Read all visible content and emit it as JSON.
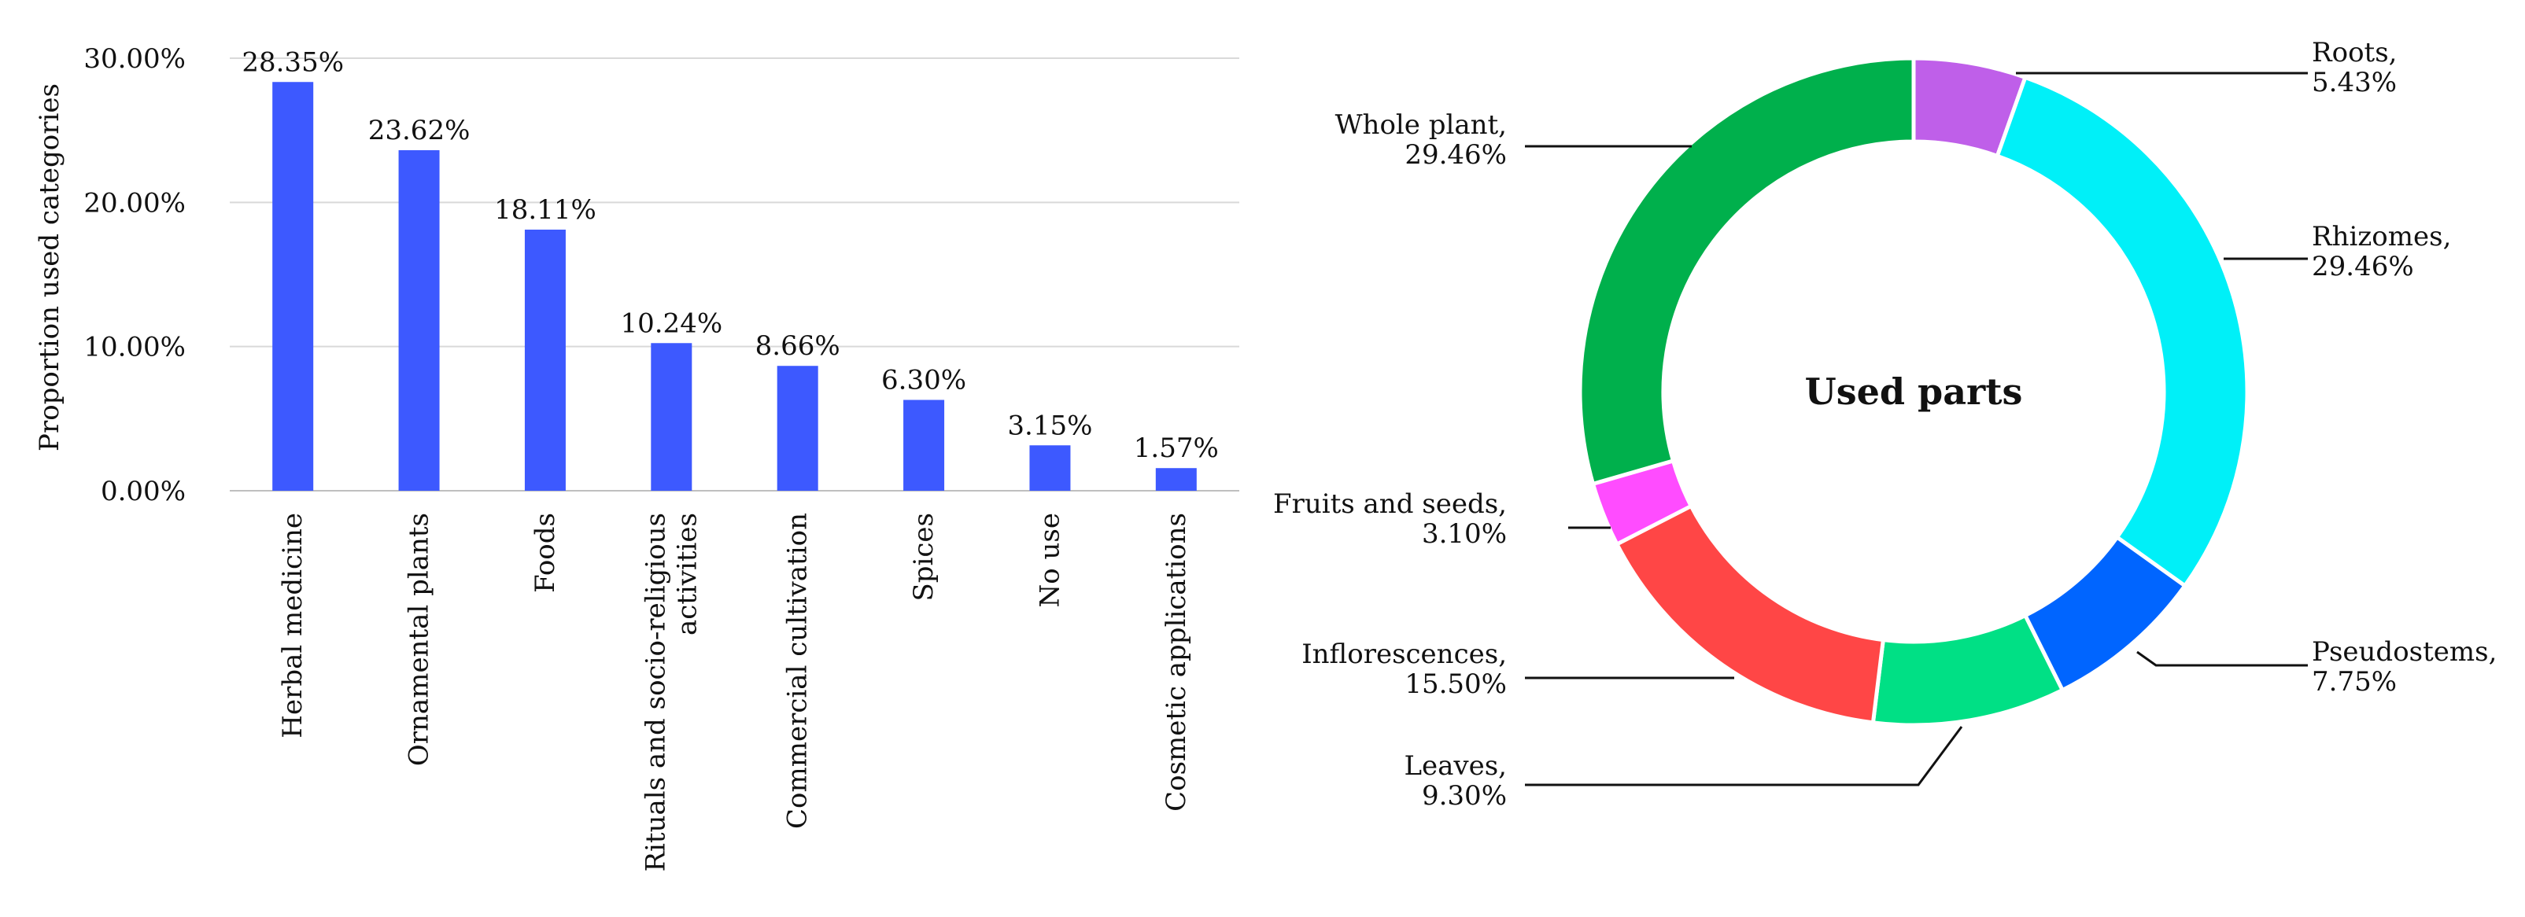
{
  "chart_data": [
    {
      "type": "bar",
      "title": "",
      "xlabel": "",
      "ylabel": "Proportion  used categories",
      "ylim": [
        0,
        30
      ],
      "yticks": [
        "0.00%",
        "10.00%",
        "20.00%",
        "30.00%"
      ],
      "grid": true,
      "bar_color": "#3d59ff",
      "categories": [
        [
          "Herbal medicine"
        ],
        [
          "Ornamental plants"
        ],
        [
          "Foods"
        ],
        [
          "Rituals and socio-religious",
          "activities"
        ],
        [
          "Commercial cultivation"
        ],
        [
          "Spices"
        ],
        [
          "No use"
        ],
        [
          "Cosmetic applications"
        ]
      ],
      "values": [
        28.35,
        23.62,
        18.11,
        10.24,
        8.66,
        6.3,
        3.15,
        1.57
      ],
      "data_labels": [
        "28.35%",
        "23.62%",
        "18.11%",
        "10.24%",
        "8.66%",
        "6.30%",
        "3.15%",
        "1.57%"
      ]
    },
    {
      "type": "pie",
      "title": "Used parts",
      "slices": [
        {
          "label": "Roots,",
          "value_label": "5.43%",
          "value": 5.43,
          "color": "#bf5fe9"
        },
        {
          "label": "Rhizomes,",
          "value_label": "29.46%",
          "value": 29.46,
          "color": "#00f0f8"
        },
        {
          "label": "Pseudostems,",
          "value_label": "7.75%",
          "value": 7.75,
          "color": "#0065ff"
        },
        {
          "label": "Leaves,",
          "value_label": "9.30%",
          "value": 9.3,
          "color": "#00e085"
        },
        {
          "label": "Inflorescences,",
          "value_label": "15.50%",
          "value": 15.5,
          "color": "#ff4646"
        },
        {
          "label": "Fruits and seeds,",
          "value_label": "3.10%",
          "value": 3.1,
          "color": "#ff4cff"
        },
        {
          "label": "Whole plant,",
          "value_label": "29.46%",
          "value": 29.46,
          "color": "#00b04c"
        }
      ]
    }
  ]
}
